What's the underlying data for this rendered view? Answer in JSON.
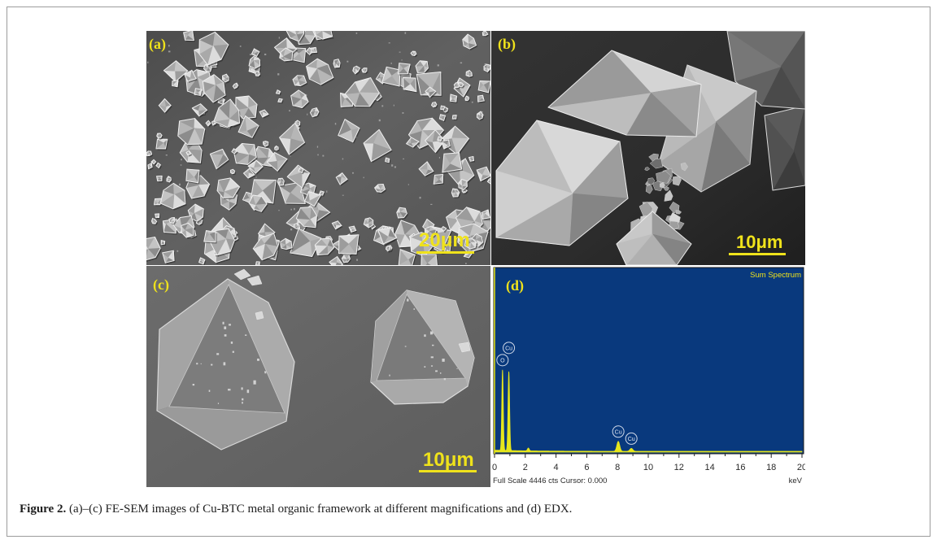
{
  "figure": {
    "panels": [
      {
        "label": "(a)",
        "scale_bar": "20μm"
      },
      {
        "label": "(b)",
        "scale_bar": "10μm"
      },
      {
        "label": "(c)",
        "scale_bar": "10μm"
      },
      {
        "label": "(d)"
      }
    ]
  },
  "caption": {
    "label": "Figure 2.",
    "text": "(a)–(c) FE-SEM images of Cu-BTC metal organic framework at different magnifications and (d) EDX."
  },
  "colors": {
    "annotation": "#efe21b",
    "spectrum_background": "#09397d",
    "spectrum": "#e6e61c"
  },
  "chart_data": {
    "type": "line",
    "title": "Sum Spectrum",
    "xlabel": "keV",
    "xlim": [
      0,
      20
    ],
    "ylim": [
      0,
      4446
    ],
    "x_ticks": [
      "0",
      "2",
      "4",
      "6",
      "8",
      "10",
      "12",
      "14",
      "16",
      "18",
      "20"
    ],
    "cursor": 0.0,
    "footer": "Full Scale 4446 cts Cursor: 0.000",
    "peaks": [
      {
        "x": 0.52,
        "y": 1990,
        "label": "O"
      },
      {
        "x": 0.93,
        "y": 1950,
        "label": "Cu"
      },
      {
        "x": 2.2,
        "y": 100
      },
      {
        "x": 8.05,
        "y": 260,
        "label": "Cu"
      },
      {
        "x": 8.9,
        "y": 90,
        "label": "Cu"
      }
    ]
  }
}
